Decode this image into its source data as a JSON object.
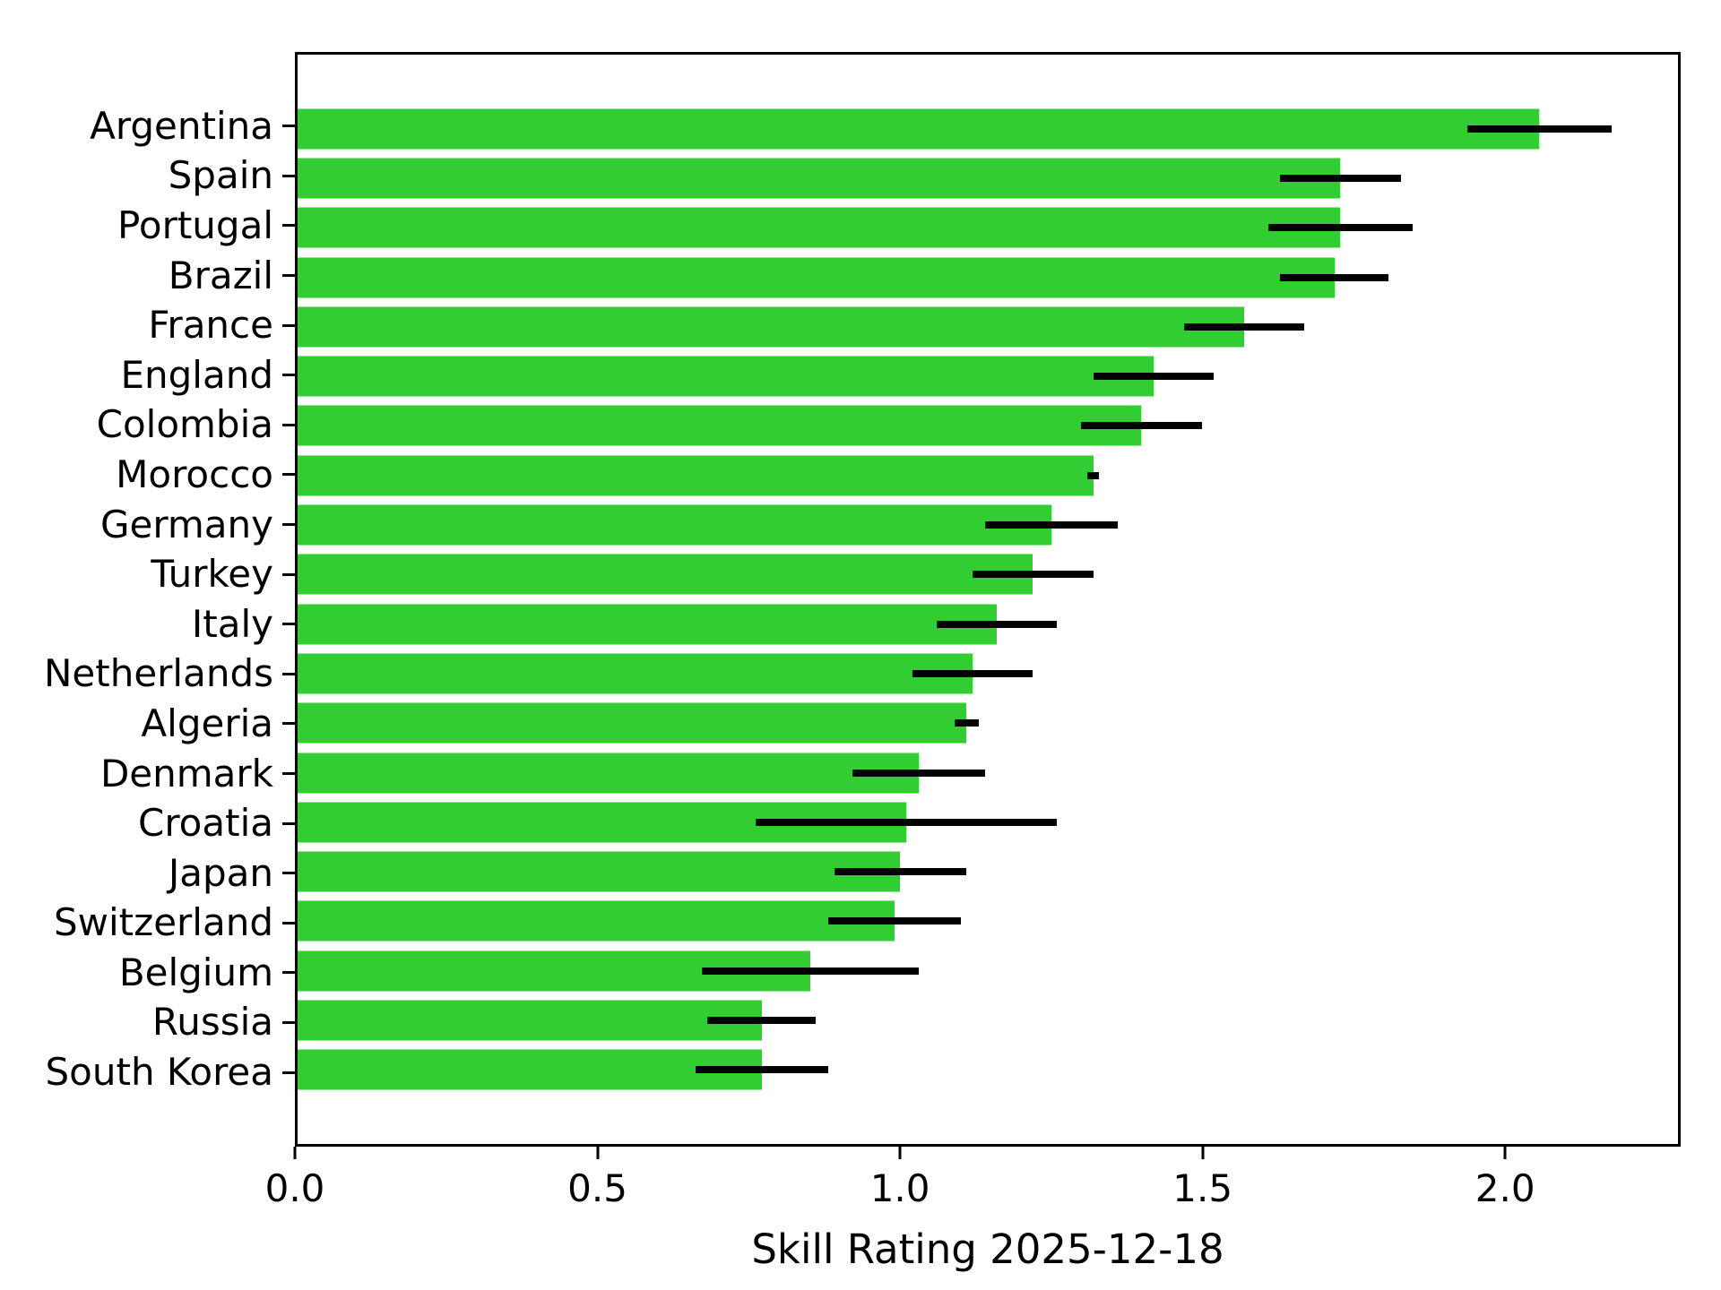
{
  "chart_data": {
    "type": "bar",
    "orientation": "horizontal",
    "title": "",
    "xlabel": "Skill Rating 2025-12-18",
    "ylabel": "",
    "categories": [
      "Argentina",
      "Spain",
      "Portugal",
      "Brazil",
      "France",
      "England",
      "Colombia",
      "Morocco",
      "Germany",
      "Turkey",
      "Italy",
      "Netherlands",
      "Algeria",
      "Denmark",
      "Croatia",
      "Japan",
      "Switzerland",
      "Belgium",
      "Russia",
      "South Korea"
    ],
    "series": [
      {
        "name": "Skill Rating",
        "values": [
          2.06,
          1.73,
          1.73,
          1.72,
          1.57,
          1.42,
          1.4,
          1.32,
          1.25,
          1.22,
          1.16,
          1.12,
          1.11,
          1.03,
          1.01,
          1.0,
          0.99,
          0.85,
          0.77,
          0.77
        ],
        "errors": [
          0.12,
          0.1,
          0.12,
          0.09,
          0.1,
          0.1,
          0.1,
          0.01,
          0.11,
          0.1,
          0.1,
          0.1,
          0.02,
          0.11,
          0.25,
          0.11,
          0.11,
          0.18,
          0.09,
          0.11
        ]
      }
    ],
    "xlim": [
      0,
      2.29
    ],
    "xticks": [
      {
        "value": 0.0,
        "label": "0.0"
      },
      {
        "value": 0.5,
        "label": "0.5"
      },
      {
        "value": 1.0,
        "label": "1.0"
      },
      {
        "value": 1.5,
        "label": "1.5"
      },
      {
        "value": 2.0,
        "label": "2.0"
      }
    ],
    "grid": false,
    "legend": null,
    "bar_color": "#32CD32",
    "error_color": "#000000",
    "background_color": "#ffffff",
    "spine_color": "#000000"
  }
}
